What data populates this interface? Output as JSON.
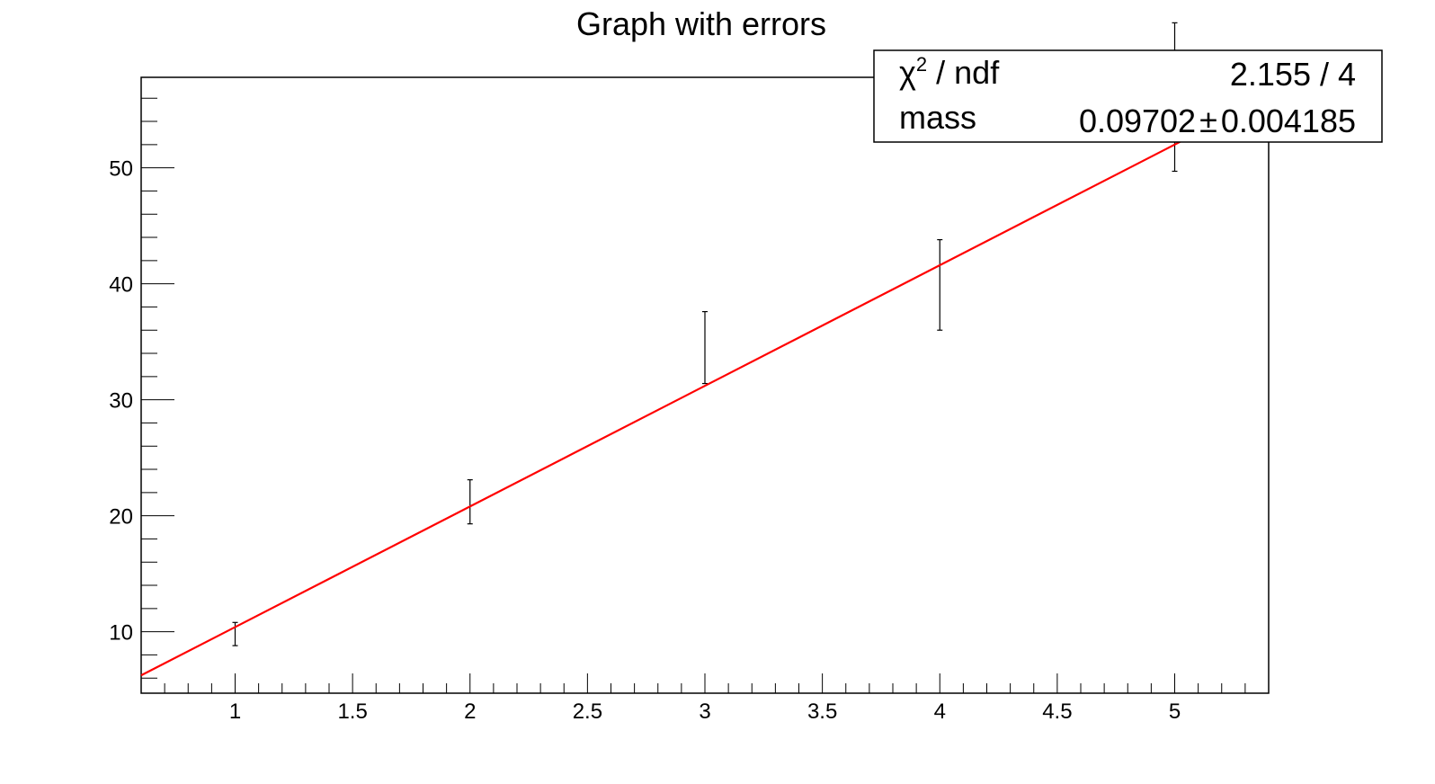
{
  "chart_data": {
    "type": "scatter",
    "title": "Graph with errors",
    "xlabel": "",
    "ylabel": "",
    "xlim": [
      0.6,
      5.4
    ],
    "ylim": [
      4.7,
      57.8
    ],
    "x_ticks": [
      "1",
      "1.5",
      "2",
      "2.5",
      "3",
      "3.5",
      "4",
      "4.5",
      "5"
    ],
    "x_tick_values": [
      1,
      1.5,
      2,
      2.5,
      3,
      3.5,
      4,
      4.5,
      5
    ],
    "y_ticks": [
      "10",
      "20",
      "30",
      "40",
      "50"
    ],
    "y_tick_values": [
      10,
      20,
      30,
      40,
      50
    ],
    "grid": false,
    "points": {
      "x": [
        1,
        2,
        3,
        4,
        5
      ],
      "y": [
        9.8,
        21.2,
        34.5,
        39.9,
        56.1
      ],
      "yerr": [
        1.0,
        1.9,
        3.1,
        3.9,
        6.4
      ]
    },
    "fit": {
      "slope": 10.4,
      "intercept": 0,
      "color": "#ff0000"
    },
    "stats_box": {
      "position": "top-right",
      "rows": [
        {
          "label_main": "χ",
          "label_sup": "2",
          "label_rest": " / ndf",
          "value": "2.155 / 4"
        },
        {
          "label_main": "mass",
          "value_main": "0.09702",
          "pm": "±",
          "value_err": "0.004185"
        }
      ]
    }
  }
}
